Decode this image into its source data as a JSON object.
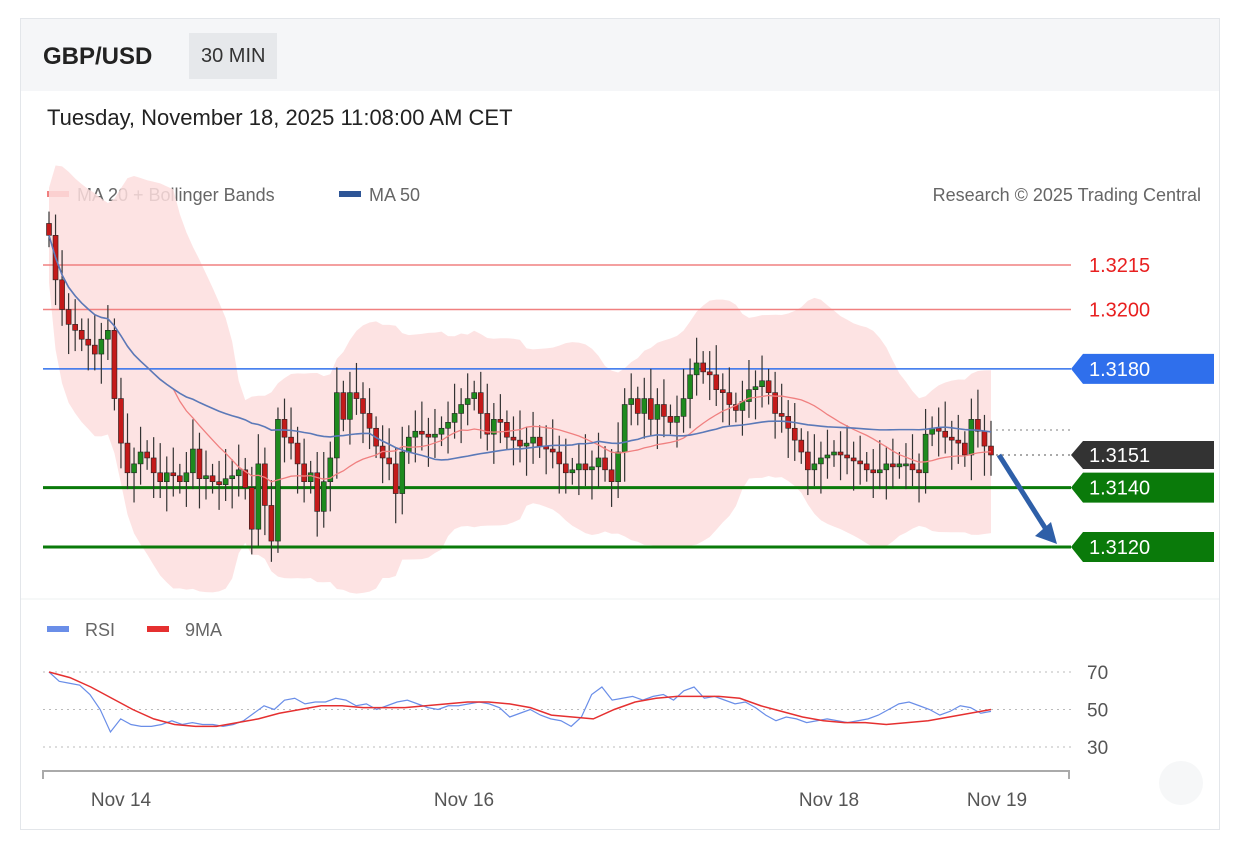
{
  "header": {
    "symbol": "GBP/USD",
    "timeframe": "30 MIN",
    "datetime": "Tuesday, November 18, 2025 11:08:00 AM CET"
  },
  "legend": {
    "ma20_label": "MA 20 + Bollinger Bands",
    "ma50_label": "MA 50",
    "copyright": "Research © 2025 Trading Central",
    "rsi_label": "RSI",
    "rsi_ma_label": "9MA"
  },
  "colors": {
    "bull": "#1e8a1e",
    "bear": "#c41a1a",
    "ma20": "#f08080",
    "band": "#fddede",
    "ma50": "#5b79b8",
    "resistance": "#f08080",
    "pivot": "#2f6fec",
    "support": "#0a7a0a",
    "current": "#333333",
    "arrow": "#2e5fa8",
    "rsi": "#6a8ee8",
    "rsi_ma": "#e53030"
  },
  "chart_data": [
    {
      "type": "candlestick",
      "title": "GBP/USD 30 MIN",
      "ylim": [
        1.3101,
        1.3233
      ],
      "x_ticks": [
        "Nov 14",
        "Nov 16",
        "Nov 18",
        "Nov 19"
      ],
      "levels": [
        {
          "value": "1.3215",
          "kind": "resistance"
        },
        {
          "value": "1.3200",
          "kind": "resistance"
        },
        {
          "value": "1.3180",
          "kind": "pivot"
        },
        {
          "value": "1.3151",
          "kind": "current"
        },
        {
          "value": "1.3140",
          "kind": "support"
        },
        {
          "value": "1.3120",
          "kind": "support"
        }
      ],
      "close": [
        1.3225,
        1.321,
        1.32,
        1.3195,
        1.3193,
        1.319,
        1.3188,
        1.3185,
        1.319,
        1.3193,
        1.317,
        1.3155,
        1.3145,
        1.3148,
        1.3152,
        1.315,
        1.3145,
        1.3142,
        1.3145,
        1.3144,
        1.3142,
        1.3145,
        1.3153,
        1.3143,
        1.3144,
        1.3142,
        1.3141,
        1.3143,
        1.3144,
        1.3146,
        1.314,
        1.3126,
        1.3148,
        1.3134,
        1.3122,
        1.3163,
        1.3157,
        1.3155,
        1.3148,
        1.3142,
        1.3145,
        1.3132,
        1.3142,
        1.315,
        1.3172,
        1.3163,
        1.3172,
        1.317,
        1.3165,
        1.316,
        1.3154,
        1.315,
        1.3148,
        1.3138,
        1.3152,
        1.3157,
        1.3159,
        1.3158,
        1.3157,
        1.3158,
        1.316,
        1.3162,
        1.3165,
        1.3168,
        1.317,
        1.3172,
        1.3165,
        1.3158,
        1.3163,
        1.3162,
        1.3157,
        1.3156,
        1.3154,
        1.3155,
        1.3157,
        1.3154,
        1.3153,
        1.3152,
        1.3148,
        1.3145,
        1.3146,
        1.3148,
        1.3146,
        1.3147,
        1.315,
        1.3146,
        1.3142,
        1.3152,
        1.3168,
        1.317,
        1.3165,
        1.317,
        1.3163,
        1.3168,
        1.3164,
        1.3162,
        1.3164,
        1.317,
        1.3178,
        1.3182,
        1.3179,
        1.3178,
        1.3173,
        1.3172,
        1.3168,
        1.3166,
        1.3169,
        1.3173,
        1.3174,
        1.3176,
        1.3172,
        1.3165,
        1.3164,
        1.316,
        1.3156,
        1.3152,
        1.3146,
        1.3148,
        1.315,
        1.3151,
        1.3152,
        1.3151,
        1.315,
        1.3149,
        1.3148,
        1.3146,
        1.3145,
        1.3146,
        1.3148,
        1.3147,
        1.3148,
        1.3148,
        1.3146,
        1.3145,
        1.3158,
        1.316,
        1.3159,
        1.3157,
        1.3156,
        1.3155,
        1.3151,
        1.3163,
        1.3159,
        1.3154,
        1.3151
      ]
    },
    {
      "type": "line",
      "title": "RSI",
      "ylim": [
        25,
        75
      ],
      "y_ticks": [
        70,
        50,
        30
      ],
      "series": [
        {
          "name": "RSI",
          "values": [
            70,
            65,
            64,
            63,
            58,
            50,
            38,
            45,
            42,
            41,
            41,
            42,
            44,
            42,
            43,
            42,
            42,
            41,
            42,
            44,
            48,
            52,
            50,
            55,
            56,
            53,
            54,
            54,
            56,
            55,
            52,
            53,
            50,
            52,
            54,
            55,
            53,
            51,
            50,
            52,
            52,
            53,
            54,
            53,
            51,
            46,
            48,
            50,
            47,
            45,
            44,
            41,
            46,
            58,
            62,
            55,
            56,
            57,
            55,
            57,
            58,
            55,
            60,
            62,
            56,
            57,
            55,
            53,
            54,
            51,
            47,
            44,
            46,
            45,
            43,
            44,
            45,
            44,
            43,
            44,
            45,
            47,
            50,
            53,
            54,
            52,
            50,
            47,
            49,
            52,
            51,
            48,
            49
          ]
        },
        {
          "name": "9MA",
          "values": [
            70,
            67,
            62,
            56,
            50,
            45,
            42,
            41,
            41,
            43,
            45,
            48,
            50,
            52,
            52,
            51,
            51,
            51,
            52,
            53,
            54,
            54,
            53,
            51,
            47,
            46,
            45,
            50,
            54,
            56,
            57,
            57,
            57,
            56,
            52,
            49,
            46,
            44,
            43,
            43,
            42,
            43,
            44,
            46,
            48,
            50
          ]
        }
      ]
    }
  ]
}
